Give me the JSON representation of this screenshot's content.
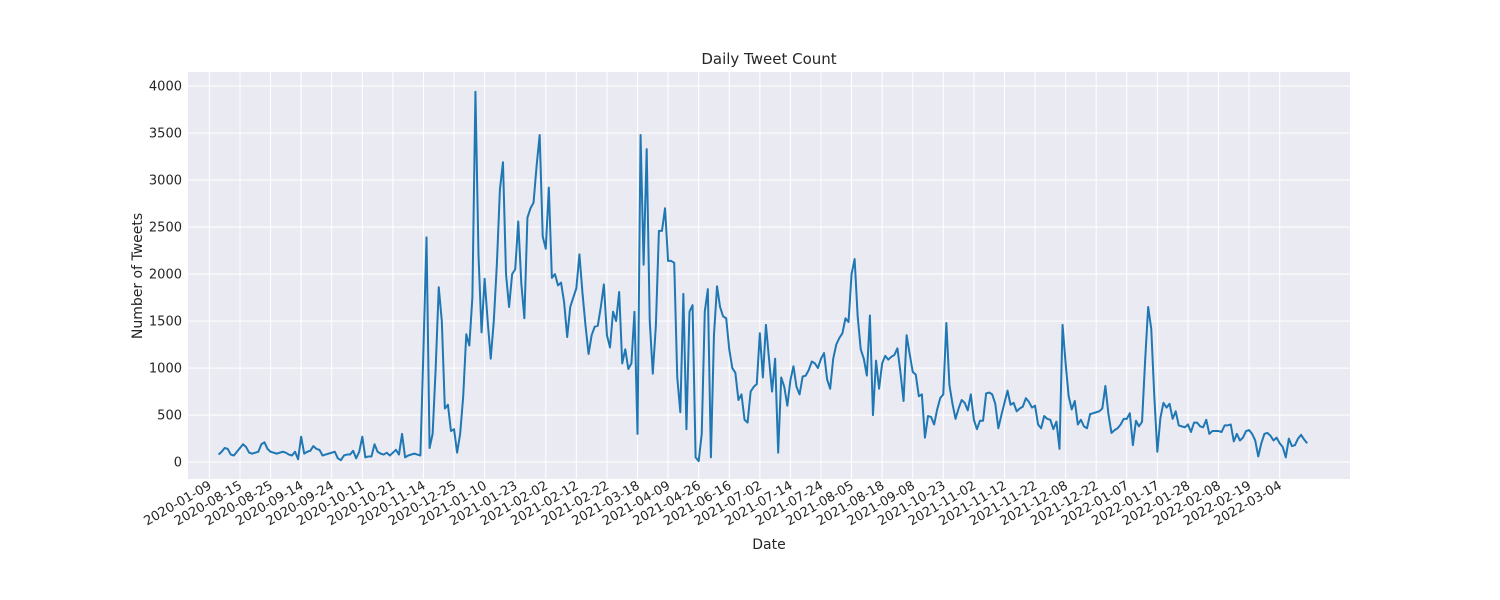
{
  "chart_data": {
    "type": "line",
    "title": "Daily Tweet Count",
    "xlabel": "Date",
    "ylabel": "Number of Tweets",
    "ylim": [
      -180,
      4150
    ],
    "yticks": [
      0,
      500,
      1000,
      1500,
      2000,
      2500,
      3000,
      3500,
      4000
    ],
    "grid": true,
    "legend": "none",
    "colors": {
      "line": "#1f77b4",
      "axes_bg": "#eaeaf2",
      "grid": "#ffffff"
    },
    "x_tick_labels": [
      "2020-01-09",
      "2020-08-15",
      "2020-08-25",
      "2020-09-14",
      "2020-09-24",
      "2020-10-11",
      "2020-10-21",
      "2020-11-14",
      "2020-12-25",
      "2021-01-10",
      "2021-01-23",
      "2021-02-02",
      "2021-02-12",
      "2021-02-22",
      "2021-03-18",
      "2021-04-09",
      "2021-04-26",
      "2021-06-16",
      "2021-07-02",
      "2021-07-14",
      "2021-07-24",
      "2021-08-05",
      "2021-08-18",
      "2021-09-08",
      "2021-10-23",
      "2021-11-02",
      "2021-11-12",
      "2021-11-22",
      "2021-12-08",
      "2021-12-22",
      "2022-01-07",
      "2022-01-17",
      "2022-01-28",
      "2022-02-08",
      "2022-02-19",
      "2022-03-04"
    ],
    "x_tick_start_index": -3,
    "x_tick_step": 10,
    "xlim_index": [
      -10,
      370
    ],
    "series": [
      {
        "values": [
          80,
          110,
          150,
          140,
          80,
          70,
          110,
          150,
          190,
          160,
          100,
          90,
          100,
          110,
          190,
          210,
          140,
          110,
          100,
          90,
          100,
          110,
          100,
          80,
          70,
          110,
          30,
          270,
          90,
          110,
          120,
          170,
          140,
          130,
          70,
          80,
          90,
          100,
          110,
          40,
          20,
          70,
          80,
          80,
          120,
          40,
          110,
          270,
          50,
          60,
          60,
          190,
          110,
          90,
          80,
          100,
          70,
          100,
          130,
          80,
          300,
          50,
          70,
          80,
          90,
          80,
          70,
          1200,
          2390,
          150,
          300,
          1000,
          1860,
          1500,
          570,
          610,
          330,
          350,
          100,
          300,
          700,
          1360,
          1240,
          1750,
          3940,
          2200,
          1380,
          1950,
          1500,
          1100,
          1500,
          2100,
          2900,
          3190,
          2000,
          1650,
          2000,
          2050,
          2560,
          1900,
          1530,
          2600,
          2700,
          2760,
          3150,
          3480,
          2400,
          2270,
          2920,
          1960,
          2000,
          1880,
          1910,
          1700,
          1330,
          1650,
          1750,
          1850,
          2210,
          1800,
          1450,
          1150,
          1350,
          1440,
          1450,
          1650,
          1890,
          1350,
          1220,
          1600,
          1500,
          1810,
          1050,
          1200,
          990,
          1050,
          1600,
          300,
          3480,
          2100,
          3330,
          1500,
          940,
          1450,
          2460,
          2460,
          2700,
          2140,
          2140,
          2120,
          900,
          530,
          1790,
          350,
          1600,
          1670,
          50,
          10,
          300,
          1600,
          1840,
          50,
          1350,
          1870,
          1650,
          1550,
          1530,
          1200,
          1000,
          950,
          660,
          720,
          450,
          420,
          750,
          800,
          830,
          1370,
          900,
          1460,
          1100,
          750,
          1100,
          100,
          900,
          800,
          600,
          870,
          1020,
          800,
          720,
          910,
          920,
          980,
          1070,
          1050,
          1000,
          1100,
          1160,
          880,
          780,
          1100,
          1250,
          1320,
          1370,
          1530,
          1490,
          2000,
          2160,
          1550,
          1200,
          1100,
          920,
          1560,
          500,
          1080,
          780,
          1050,
          1130,
          1090,
          1120,
          1140,
          1210,
          950,
          650,
          1350,
          1150,
          960,
          930,
          700,
          720,
          260,
          490,
          480,
          400,
          560,
          680,
          720,
          1480,
          820,
          620,
          460,
          570,
          660,
          630,
          550,
          720,
          450,
          350,
          440,
          440,
          730,
          740,
          720,
          620,
          360,
          500,
          630,
          760,
          610,
          630,
          540,
          570,
          590,
          680,
          640,
          580,
          600,
          400,
          360,
          490,
          460,
          450,
          350,
          430,
          140,
          1460,
          1050,
          700,
          560,
          650,
          400,
          450,
          380,
          360,
          510,
          520,
          530,
          540,
          570,
          810,
          510,
          310,
          340,
          360,
          400,
          460,
          460,
          520,
          180,
          440,
          380,
          430,
          1080,
          1650,
          1420,
          700,
          110,
          470,
          630,
          580,
          620,
          460,
          540,
          390,
          380,
          370,
          400,
          320,
          420,
          420,
          380,
          370,
          450,
          300,
          330,
          330,
          330,
          320,
          390,
          390,
          400,
          220,
          300,
          230,
          260,
          330,
          340,
          300,
          230,
          60,
          200,
          300,
          310,
          280,
          230,
          260,
          200,
          160,
          50,
          250,
          170,
          180,
          250,
          290,
          240,
          200
        ]
      }
    ]
  }
}
